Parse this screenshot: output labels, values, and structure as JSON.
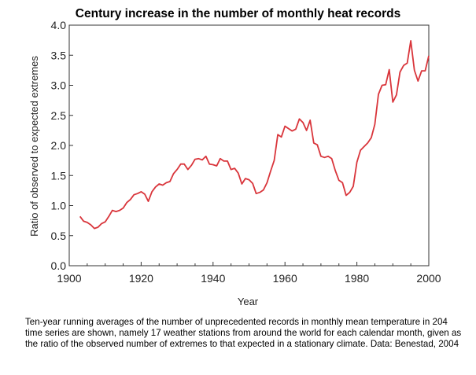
{
  "chart_data": {
    "type": "line",
    "title": "Century increase in the number of monthly heat records",
    "xlabel": "Year",
    "ylabel": "Ratio of observed to expected extremes",
    "xlim": [
      1900,
      2000
    ],
    "ylim": [
      0.0,
      4.0
    ],
    "xticks": [
      1900,
      1920,
      1940,
      1960,
      1980,
      2000
    ],
    "xtick_labels": [
      "1900",
      "1920",
      "1940",
      "1960",
      "1980",
      "2000"
    ],
    "yticks": [
      0.0,
      0.5,
      1.0,
      1.5,
      2.0,
      2.5,
      3.0,
      3.5,
      4.0
    ],
    "ytick_labels": [
      "0.0",
      "0.5",
      "1.0",
      "1.5",
      "2.0",
      "2.5",
      "3.0",
      "3.5",
      "4.0"
    ],
    "grid": false,
    "line_color": "#d9353b",
    "series": [
      {
        "x": [
          1903,
          1904,
          1905,
          1906,
          1907,
          1908,
          1909,
          1910,
          1911,
          1912,
          1913,
          1914,
          1915,
          1916,
          1917,
          1918,
          1919,
          1920,
          1921,
          1922,
          1923,
          1924,
          1925,
          1926,
          1927,
          1928,
          1929,
          1930,
          1931,
          1932,
          1933,
          1934,
          1935,
          1936,
          1937,
          1938,
          1939,
          1940,
          1941,
          1942,
          1943,
          1944,
          1945,
          1946,
          1947,
          1948,
          1949,
          1950,
          1951,
          1952,
          1953,
          1954,
          1955,
          1956,
          1957,
          1958,
          1959,
          1960,
          1961,
          1962,
          1963,
          1964,
          1965,
          1966,
          1967,
          1968,
          1969,
          1970,
          1971,
          1972,
          1973,
          1974,
          1975,
          1976,
          1977,
          1978,
          1979,
          1980,
          1981,
          1982,
          1983,
          1984,
          1985,
          1986,
          1987,
          1988,
          1989,
          1990,
          1991,
          1992,
          1993,
          1994,
          1995,
          1996,
          1997,
          1998,
          1999,
          2000
        ],
        "values": [
          0.82,
          0.74,
          0.72,
          0.68,
          0.62,
          0.64,
          0.7,
          0.73,
          0.82,
          0.92,
          0.9,
          0.92,
          0.96,
          1.05,
          1.1,
          1.18,
          1.2,
          1.23,
          1.19,
          1.07,
          1.23,
          1.31,
          1.36,
          1.34,
          1.38,
          1.4,
          1.53,
          1.6,
          1.69,
          1.69,
          1.6,
          1.67,
          1.77,
          1.78,
          1.76,
          1.82,
          1.69,
          1.68,
          1.66,
          1.78,
          1.74,
          1.74,
          1.6,
          1.62,
          1.54,
          1.36,
          1.45,
          1.43,
          1.37,
          1.2,
          1.22,
          1.26,
          1.38,
          1.57,
          1.75,
          2.18,
          2.14,
          2.32,
          2.28,
          2.24,
          2.27,
          2.44,
          2.38,
          2.25,
          2.42,
          2.04,
          2.01,
          1.82,
          1.8,
          1.82,
          1.78,
          1.58,
          1.42,
          1.38,
          1.17,
          1.22,
          1.32,
          1.72,
          1.92,
          1.98,
          2.04,
          2.13,
          2.35,
          2.85,
          3.0,
          3.01,
          3.26,
          2.72,
          2.84,
          3.22,
          3.33,
          3.37,
          3.74,
          3.25,
          3.07,
          3.24,
          3.24,
          3.49
        ]
      }
    ]
  },
  "caption": "Ten-year running averages of the number of unprecedented records in monthly mean temperature in 204 time series are shown, namely 17 weather stations from around the world for each calendar month, given as the ratio of the observed number of extremes to that expected in a stationary climate. Data: Benestad, 2004"
}
